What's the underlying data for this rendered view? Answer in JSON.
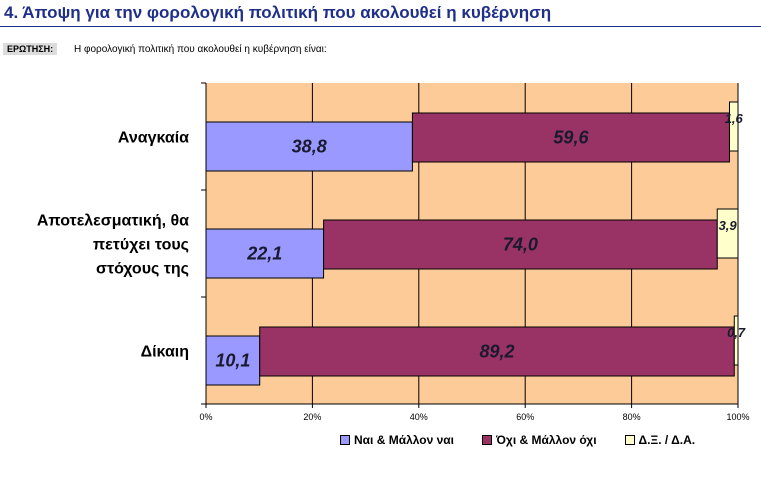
{
  "header": {
    "title": "4.   Άποψη για την φορολογική πολιτική που ακολουθεί η κυβέρνηση",
    "question_tag": "ΕΡΩΤΗΣΗ:",
    "question_text": "Η φορολογική πολιτική που ακολουθεί η κυβέρνηση είναι:"
  },
  "colors": {
    "plot_background": "#fdcb98",
    "yes": "#9999ff",
    "no": "#993366",
    "dk": "#ffffcc",
    "title": "#1f2f8a"
  },
  "chart_data": {
    "type": "bar",
    "orientation": "horizontal",
    "stacked": true,
    "percent": true,
    "categories": [
      "Αναγκαία",
      "Αποτελεσματική, θα πετύχει τους στόχους της",
      "Δίκαιη"
    ],
    "category_lines": [
      [
        "Αναγκαία"
      ],
      [
        "Αποτελεσματική, θα",
        "πετύχει τους",
        "στόχους της"
      ],
      [
        "Δίκαιη"
      ]
    ],
    "series": [
      {
        "name": "Ναι & Μάλλον ναι",
        "values": [
          38.8,
          22.1,
          10.1
        ],
        "labels": [
          "38,8",
          "22,1",
          "10,1"
        ]
      },
      {
        "name": "Όχι & Μάλλον όχι",
        "values": [
          59.6,
          74.0,
          89.2
        ],
        "labels": [
          "59,6",
          "74,0",
          "89,2"
        ]
      },
      {
        "name": "Δ.Ξ. / Δ.Α.",
        "values": [
          1.6,
          3.9,
          0.7
        ],
        "labels": [
          "1,6",
          "3,9",
          "0,7"
        ]
      }
    ],
    "x_ticks": [
      "0%",
      "20%",
      "40%",
      "60%",
      "80%",
      "100%"
    ],
    "xlim": [
      0,
      100
    ],
    "grid": true,
    "legend_position": "bottom-right"
  }
}
